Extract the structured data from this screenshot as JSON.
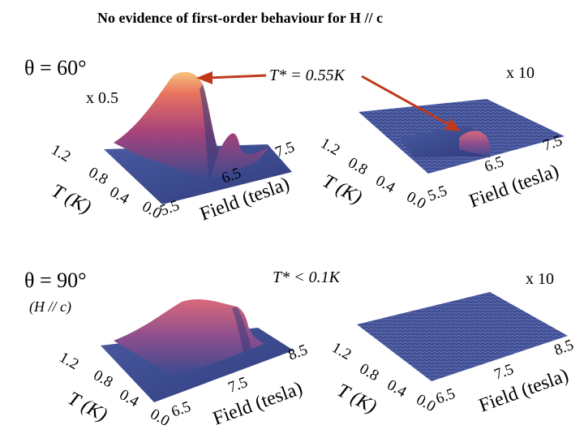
{
  "slide_title": "No evidence of first-order behaviour for H // c",
  "rows": [
    {
      "angle_label": "θ = 60°",
      "condition_label": "",
      "scale_left": "x 0.5",
      "scale_right": "x 10",
      "tstar_label": "T* = 0.55K"
    },
    {
      "angle_label": "θ = 90°",
      "condition_label": "(H // c)",
      "scale_left": "",
      "scale_right": "x 10",
      "tstar_label": "T* < 0.1K"
    }
  ],
  "colors": {
    "surface_low": "#3b4a8f",
    "surface_mid": "#b8456e",
    "surface_high": "#f2b46a",
    "arrow": "#c0391b"
  },
  "chart_data": [
    {
      "type": "surface",
      "panel": "top-left",
      "x_label": "T (K)",
      "x_ticks": [
        "1.2",
        "0.8",
        "0.4",
        "0.0"
      ],
      "y_label": "Field (tesla)",
      "y_ticks": [
        "5.5",
        "6.5",
        "7.5"
      ],
      "scale_factor": "x 0.5",
      "peak": {
        "T": 0.0,
        "field": 6.3,
        "relative_height": 1.0
      }
    },
    {
      "type": "surface",
      "panel": "top-right",
      "x_label": "T (K)",
      "x_ticks": [
        "1.2",
        "0.8",
        "0.4",
        "0.0"
      ],
      "y_label": "Field (tesla)",
      "y_ticks": [
        "5.5",
        "6.5",
        "7.5"
      ],
      "scale_factor": "x 10",
      "peak": {
        "T": 0.0,
        "field": 6.3,
        "relative_height": 0.12
      }
    },
    {
      "type": "surface",
      "panel": "bottom-left",
      "x_label": "T (K)",
      "x_ticks": [
        "1.2",
        "0.8",
        "0.4",
        "0.0"
      ],
      "y_label": "Field (tesla)",
      "y_ticks": [
        "6.5",
        "7.5",
        "8.5"
      ],
      "scale_factor": "",
      "peak": {
        "T": 0.0,
        "field": 7.8,
        "relative_height": 0.7
      }
    },
    {
      "type": "surface",
      "panel": "bottom-right",
      "x_label": "T (K)",
      "x_ticks": [
        "1.2",
        "0.8",
        "0.4",
        "0.0"
      ],
      "y_label": "Field (tesla)",
      "y_ticks": [
        "6.5",
        "7.5",
        "8.5"
      ],
      "scale_factor": "x 10",
      "peak": {
        "T": 0.0,
        "field": 7.8,
        "relative_height": 0.0
      }
    }
  ]
}
